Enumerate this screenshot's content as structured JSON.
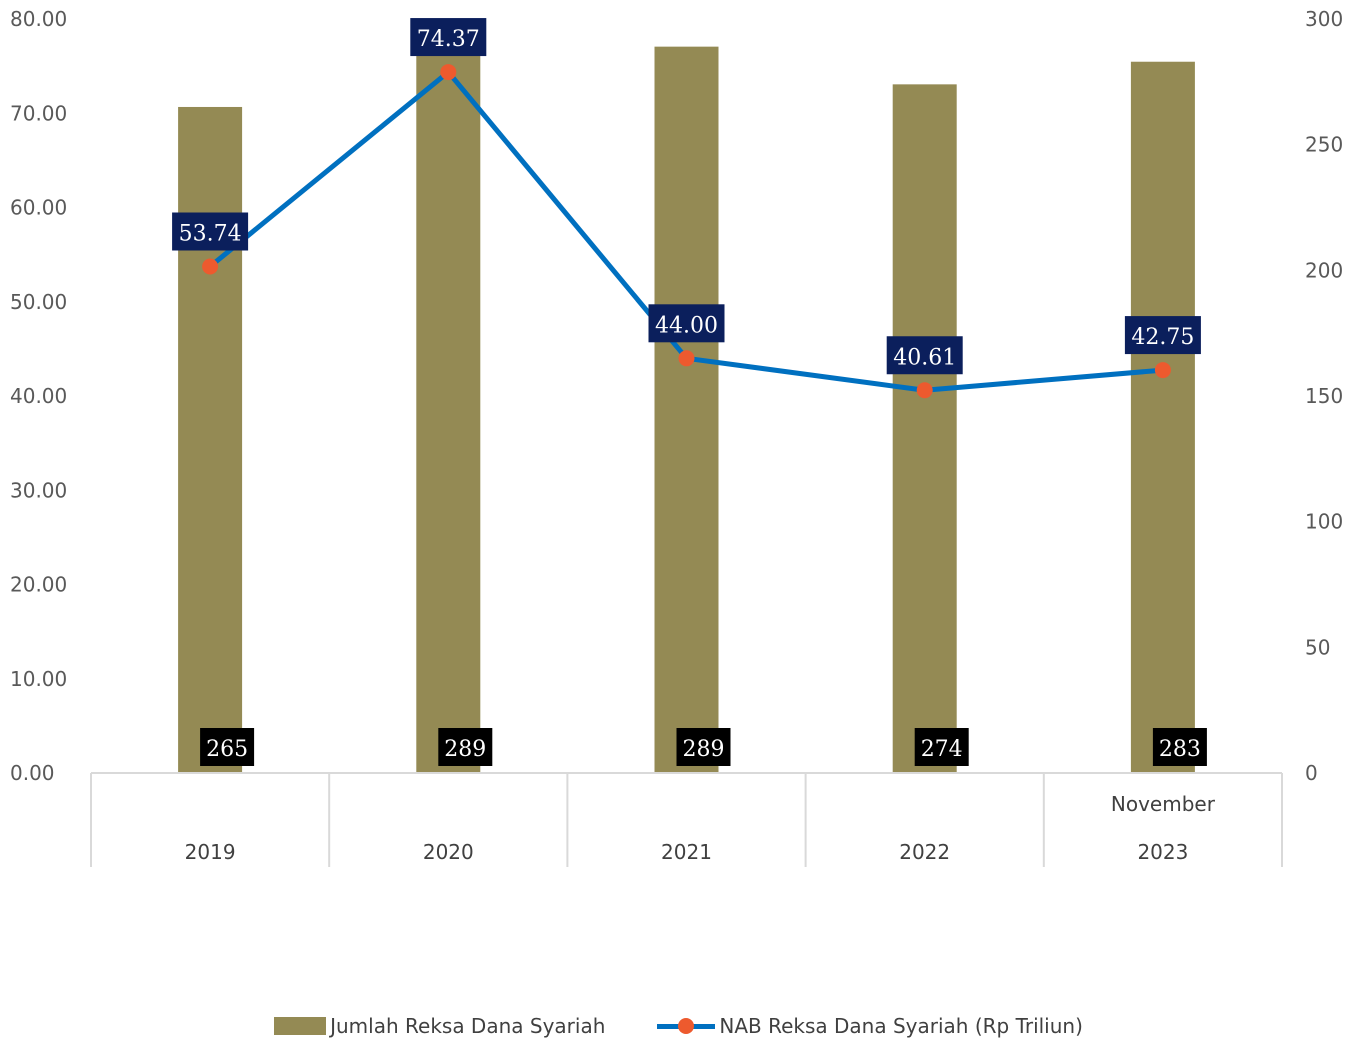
{
  "chart_data": {
    "type": "bar+line",
    "categories": [
      "2019",
      "2020",
      "2021",
      "2022",
      "2023"
    ],
    "category_top_labels": [
      "",
      "",
      "",
      "",
      "November"
    ],
    "series": [
      {
        "name": "Jumlah Reksa Dana Syariah",
        "type": "bar",
        "axis": "right",
        "values": [
          265,
          289,
          289,
          274,
          283
        ],
        "labels": [
          "265",
          "289",
          "289",
          "274",
          "283"
        ],
        "color": "#948A54"
      },
      {
        "name": "NAB Reksa Dana Syariah (Rp Triliun)",
        "type": "line",
        "axis": "left",
        "values": [
          53.74,
          74.37,
          44.0,
          40.61,
          42.75
        ],
        "labels": [
          "53.74",
          "74.37",
          "44.00",
          "40.61",
          "42.75"
        ],
        "color": "#0070C0",
        "marker_color": "#ED5A2E"
      }
    ],
    "y_left": {
      "ylim": [
        0,
        80
      ],
      "ticks": [
        "0.00",
        "10.00",
        "20.00",
        "30.00",
        "40.00",
        "50.00",
        "60.00",
        "70.00",
        "80.00"
      ]
    },
    "y_right": {
      "ylim": [
        0,
        300
      ],
      "ticks": [
        "0",
        "50",
        "100",
        "150",
        "200",
        "250",
        "300"
      ]
    },
    "bar_label_bg": "#000000",
    "line_label_bg": "#0B1F5C",
    "legend_position": "bottom",
    "grid": false
  }
}
